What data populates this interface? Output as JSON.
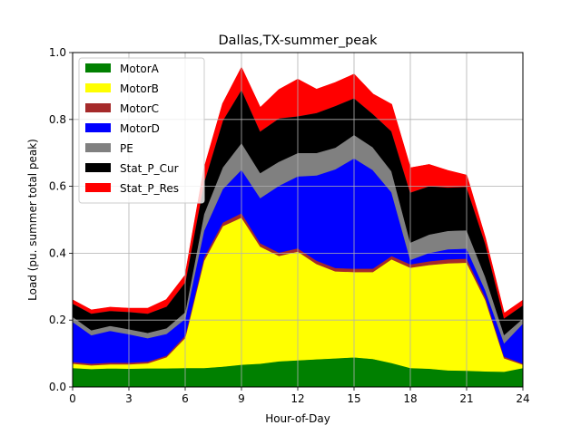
{
  "chart_data": {
    "type": "area",
    "stacked": true,
    "title": "Dallas,TX-summer_peak",
    "xlabel": "Hour-of-Day",
    "ylabel": "Load (pu. summer total peak)",
    "xlim": [
      0,
      24
    ],
    "ylim": [
      0,
      1.0
    ],
    "xticks": [
      0,
      3,
      6,
      9,
      12,
      15,
      18,
      21,
      24
    ],
    "xtick_labels": [
      "0",
      "3",
      "6",
      "9",
      "12",
      "15",
      "18",
      "21",
      "24"
    ],
    "yticks": [
      0,
      0.2,
      0.4,
      0.6,
      0.8,
      1.0
    ],
    "ytick_labels": [
      "0.0",
      "0.2",
      "0.4",
      "0.6",
      "0.8",
      "1.0"
    ],
    "grid": true,
    "legend_position": "top-left",
    "x": [
      0,
      1,
      2,
      3,
      4,
      5,
      6,
      7,
      8,
      9,
      10,
      11,
      12,
      13,
      14,
      15,
      16,
      17,
      18,
      19,
      20,
      21,
      22,
      23,
      24
    ],
    "series": [
      {
        "name": "MotorA",
        "color": "#008000",
        "values": [
          0.057,
          0.054,
          0.056,
          0.055,
          0.056,
          0.056,
          0.057,
          0.057,
          0.061,
          0.067,
          0.07,
          0.077,
          0.08,
          0.083,
          0.086,
          0.089,
          0.084,
          0.072,
          0.057,
          0.055,
          0.05,
          0.049,
          0.047,
          0.046,
          0.057
        ]
      },
      {
        "name": "MotorB",
        "color": "#ffff00",
        "values": [
          0.013,
          0.011,
          0.012,
          0.013,
          0.015,
          0.033,
          0.09,
          0.32,
          0.42,
          0.44,
          0.35,
          0.315,
          0.325,
          0.285,
          0.26,
          0.255,
          0.26,
          0.31,
          0.3,
          0.31,
          0.32,
          0.323,
          0.213,
          0.04,
          0.01
        ]
      },
      {
        "name": "MotorC",
        "color": "#a52a2a",
        "values": [
          0.005,
          0.005,
          0.005,
          0.005,
          0.005,
          0.005,
          0.007,
          0.01,
          0.011,
          0.013,
          0.01,
          0.01,
          0.01,
          0.01,
          0.01,
          0.01,
          0.01,
          0.01,
          0.01,
          0.011,
          0.012,
          0.012,
          0.009,
          0.005,
          0.003
        ]
      },
      {
        "name": "MotorD",
        "color": "#0000ff",
        "values": [
          0.12,
          0.085,
          0.095,
          0.085,
          0.07,
          0.065,
          0.05,
          0.08,
          0.1,
          0.13,
          0.135,
          0.2,
          0.215,
          0.255,
          0.295,
          0.33,
          0.295,
          0.19,
          0.013,
          0.025,
          0.03,
          0.03,
          0.02,
          0.04,
          0.12
        ]
      },
      {
        "name": "PE",
        "color": "#808080",
        "values": [
          0.015,
          0.015,
          0.015,
          0.015,
          0.016,
          0.017,
          0.02,
          0.05,
          0.065,
          0.08,
          0.075,
          0.072,
          0.07,
          0.067,
          0.065,
          0.07,
          0.068,
          0.063,
          0.052,
          0.055,
          0.055,
          0.055,
          0.04,
          0.025,
          0.015
        ]
      },
      {
        "name": "Stat_P_Cur",
        "color": "#000000",
        "values": [
          0.04,
          0.05,
          0.045,
          0.052,
          0.058,
          0.065,
          0.09,
          0.095,
          0.14,
          0.16,
          0.125,
          0.13,
          0.11,
          0.12,
          0.125,
          0.11,
          0.1,
          0.12,
          0.15,
          0.145,
          0.13,
          0.13,
          0.1,
          0.05,
          0.04
        ]
      },
      {
        "name": "Stat_P_Res",
        "color": "#ff0000",
        "values": [
          0.01,
          0.01,
          0.01,
          0.01,
          0.015,
          0.02,
          0.02,
          0.04,
          0.05,
          0.065,
          0.07,
          0.085,
          0.11,
          0.07,
          0.069,
          0.071,
          0.059,
          0.08,
          0.073,
          0.064,
          0.05,
          0.034,
          0.016,
          0.014,
          0.014
        ]
      }
    ]
  }
}
